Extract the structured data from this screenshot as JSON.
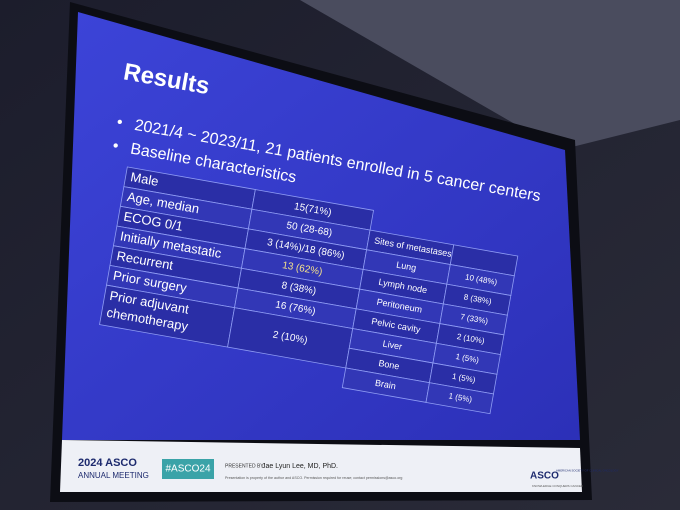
{
  "slide": {
    "title": "Results",
    "bullets": [
      "2021/4 ~ 2023/11, 21 patients enrolled in 5 cancer centers",
      "Baseline characteristics"
    ],
    "characteristics": [
      [
        "Male",
        "15(71%)"
      ],
      [
        "Age, median",
        "50 (28-68)"
      ],
      [
        "ECOG 0/1",
        "3 (14%)/18 (86%)"
      ],
      [
        "Initially metastatic",
        "13 (62%)"
      ],
      [
        "Recurrent",
        "8 (38%)"
      ],
      [
        "Prior surgery",
        "16 (76%)"
      ],
      [
        "Prior adjuvant chemotherapy",
        "2 (10%)"
      ]
    ],
    "sites": {
      "header": "Sites of metastases",
      "rows": [
        [
          "Lung",
          "10 (48%)"
        ],
        [
          "Lymph node",
          "8 (38%)"
        ],
        [
          "Peritoneum",
          "7 (33%)"
        ],
        [
          "Pelvic cavity",
          "2 (10%)"
        ],
        [
          "Liver",
          "1 (5%)"
        ],
        [
          "Bone",
          "1 (5%)"
        ],
        [
          "Brain",
          "1 (5%)"
        ]
      ]
    }
  },
  "footer": {
    "meeting_year": "2024 ASCO",
    "meeting_name": "ANNUAL MEETING",
    "hashtag": "#ASCO24",
    "presented_by": "PRESENTED BY:",
    "presenter": "Jae Lyun Lee, MD, PhD.",
    "notice": "Presentation is property of the author and ASCO. Permission required for reuse; contact permissions@asco.org",
    "logo": "ASCO",
    "society": "AMERICAN SOCIETY OF CLINICAL ONCOLOGY",
    "tagline": "KNOWLEDGE CONQUERS CANCER"
  }
}
